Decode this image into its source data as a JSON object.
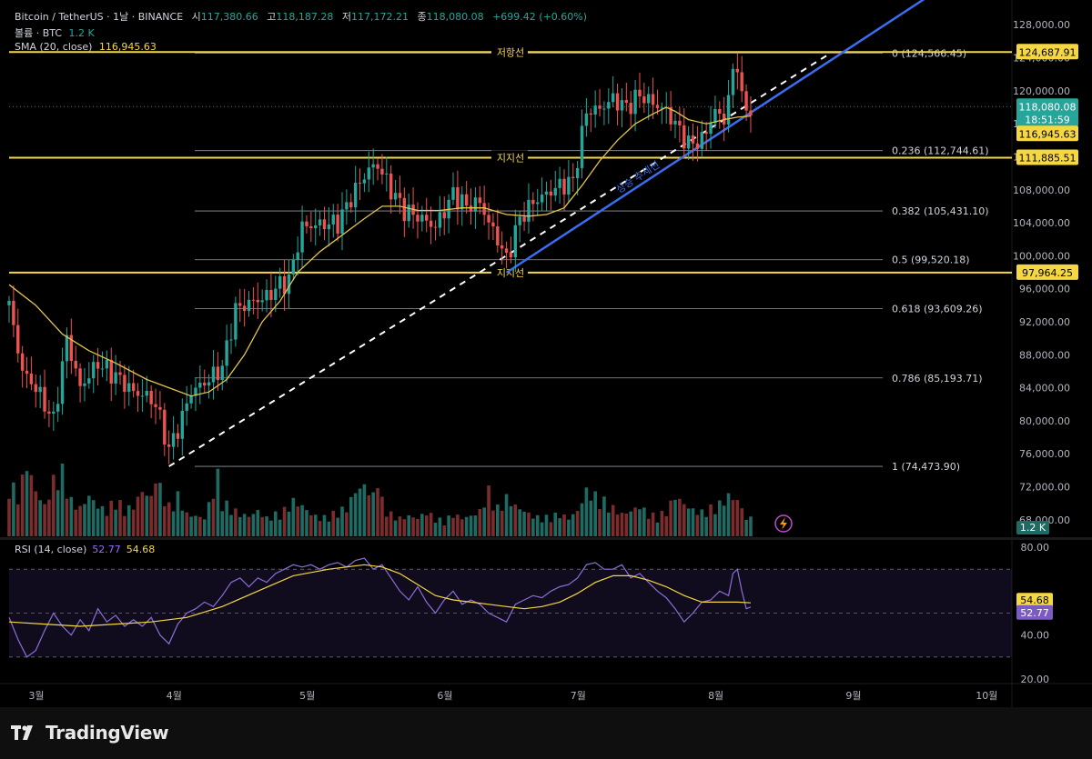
{
  "header": {
    "title": "Bitcoin / TetherUS · 1날 · BINANCE",
    "open_label": "시",
    "open": "117,380.66",
    "high_label": "고",
    "high": "118,187.28",
    "low_label": "저",
    "low": "117,172.21",
    "close_label": "종",
    "close": "118,080.08",
    "change": "+699.42 (+0.60%)",
    "volume_label": "볼륨 · BTC",
    "volume": "1.2 K",
    "sma_label": "SMA (20, close)",
    "sma": "116,945.63"
  },
  "rsi_header": {
    "label": "RSI (14, close)",
    "rsi": "52.77",
    "rsi_ma": "54.68"
  },
  "footer": {
    "brand": "TradingView"
  },
  "colors": {
    "up": "#26a69a",
    "down": "#ef5350",
    "level": "#f5d742",
    "sma": "#e3c44d",
    "trend": "#3a6df0",
    "rsi": "#8d6fd8",
    "bg": "#000000"
  },
  "chart_data": {
    "type": "candlestick",
    "y_axis": {
      "min": 66000,
      "max": 131000,
      "ticks": [
        68000,
        72000,
        76000,
        80000,
        84000,
        88000,
        92000,
        96000,
        100000,
        104000,
        108000,
        112000,
        116000,
        120000,
        124000,
        128000
      ],
      "tick_labels": [
        "68,000.00",
        "72,000.00",
        "76,000.00",
        "80,000.00",
        "84,000.00",
        "88,000.00",
        "92,000.00",
        "96,000.00",
        "100,000.00",
        "104,000.00",
        "108,000.00",
        "112,000.00",
        "116,000.00",
        "120,000.00",
        "124,000.00",
        "128,000.00"
      ]
    },
    "x_axis": {
      "months": [
        {
          "label": "3월",
          "day": 0
        },
        {
          "label": "4월",
          "day": 31
        },
        {
          "label": "5월",
          "day": 61
        },
        {
          "label": "6월",
          "day": 92
        },
        {
          "label": "7월",
          "day": 122
        },
        {
          "label": "8월",
          "day": 153
        },
        {
          "label": "9월",
          "day": 184
        },
        {
          "label": "10월",
          "day": 214
        }
      ]
    },
    "price_points": [
      [
        0,
        94000
      ],
      [
        3,
        86000
      ],
      [
        6,
        84000
      ],
      [
        10,
        80000
      ],
      [
        13,
        90000
      ],
      [
        16,
        84000
      ],
      [
        20,
        87000
      ],
      [
        25,
        85000
      ],
      [
        28,
        83500
      ],
      [
        31,
        83000
      ],
      [
        33,
        82000
      ],
      [
        36,
        76500
      ],
      [
        38,
        79000
      ],
      [
        41,
        83500
      ],
      [
        45,
        85000
      ],
      [
        48,
        86500
      ],
      [
        51,
        93500
      ],
      [
        55,
        94500
      ],
      [
        58,
        95000
      ],
      [
        61,
        96500
      ],
      [
        63,
        97000
      ],
      [
        66,
        103500
      ],
      [
        70,
        103800
      ],
      [
        74,
        104000
      ],
      [
        78,
        108000
      ],
      [
        81,
        110500
      ],
      [
        83,
        111000
      ],
      [
        86,
        108000
      ],
      [
        89,
        105500
      ],
      [
        93,
        104500
      ],
      [
        96,
        103500
      ],
      [
        100,
        107500
      ],
      [
        103,
        106000
      ],
      [
        106,
        106500
      ],
      [
        108,
        104000
      ],
      [
        110,
        102000
      ],
      [
        112,
        99500
      ],
      [
        115,
        104500
      ],
      [
        118,
        106500
      ],
      [
        121,
        107500
      ],
      [
        124,
        108500
      ],
      [
        127,
        109000
      ],
      [
        130,
        117500
      ],
      [
        133,
        117800
      ],
      [
        136,
        119000
      ],
      [
        139,
        118000
      ],
      [
        142,
        119500
      ],
      [
        145,
        118500
      ],
      [
        148,
        117500
      ],
      [
        150,
        116000
      ],
      [
        153,
        113500
      ],
      [
        156,
        114000
      ],
      [
        159,
        117500
      ],
      [
        161,
        116500
      ],
      [
        163,
        122000
      ],
      [
        164,
        123500
      ],
      [
        165,
        119000
      ],
      [
        166,
        117500
      ],
      [
        167,
        118080
      ]
    ],
    "sma_points": [
      [
        0,
        96500
      ],
      [
        6,
        94000
      ],
      [
        12,
        90500
      ],
      [
        18,
        88500
      ],
      [
        24,
        87000
      ],
      [
        31,
        85000
      ],
      [
        36,
        84000
      ],
      [
        41,
        83000
      ],
      [
        45,
        83500
      ],
      [
        49,
        85000
      ],
      [
        53,
        88000
      ],
      [
        57,
        92000
      ],
      [
        61,
        94500
      ],
      [
        65,
        98000
      ],
      [
        70,
        100500
      ],
      [
        75,
        102500
      ],
      [
        80,
        104500
      ],
      [
        84,
        106000
      ],
      [
        88,
        106000
      ],
      [
        92,
        105500
      ],
      [
        97,
        105500
      ],
      [
        102,
        105800
      ],
      [
        107,
        105800
      ],
      [
        112,
        105000
      ],
      [
        117,
        104800
      ],
      [
        121,
        105000
      ],
      [
        125,
        105800
      ],
      [
        129,
        108500
      ],
      [
        133,
        111500
      ],
      [
        137,
        114000
      ],
      [
        141,
        116000
      ],
      [
        145,
        117200
      ],
      [
        148,
        118000
      ],
      [
        150,
        117500
      ],
      [
        153,
        116500
      ],
      [
        157,
        116000
      ],
      [
        161,
        116500
      ],
      [
        164,
        116800
      ],
      [
        167,
        116945
      ]
    ],
    "volume_points": [
      [
        0,
        55
      ],
      [
        2,
        40
      ],
      [
        4,
        72
      ],
      [
        6,
        45
      ],
      [
        8,
        30
      ],
      [
        10,
        55
      ],
      [
        12,
        68
      ],
      [
        14,
        35
      ],
      [
        16,
        28
      ],
      [
        18,
        40
      ],
      [
        20,
        30
      ],
      [
        22,
        25
      ],
      [
        24,
        38
      ],
      [
        26,
        26
      ],
      [
        28,
        30
      ],
      [
        30,
        45
      ],
      [
        32,
        38
      ],
      [
        33,
        60
      ],
      [
        34,
        48
      ],
      [
        36,
        30
      ],
      [
        38,
        40
      ],
      [
        40,
        22
      ],
      [
        42,
        20
      ],
      [
        44,
        18
      ],
      [
        46,
        45
      ],
      [
        47,
        60
      ],
      [
        48,
        35
      ],
      [
        50,
        28
      ],
      [
        52,
        22
      ],
      [
        54,
        20
      ],
      [
        56,
        25
      ],
      [
        58,
        18
      ],
      [
        60,
        22
      ],
      [
        62,
        26
      ],
      [
        64,
        35
      ],
      [
        66,
        30
      ],
      [
        68,
        22
      ],
      [
        70,
        18
      ],
      [
        72,
        20
      ],
      [
        74,
        25
      ],
      [
        76,
        28
      ],
      [
        78,
        45
      ],
      [
        80,
        50
      ],
      [
        82,
        40
      ],
      [
        83,
        60
      ],
      [
        84,
        35
      ],
      [
        86,
        22
      ],
      [
        88,
        18
      ],
      [
        90,
        20
      ],
      [
        92,
        18
      ],
      [
        94,
        24
      ],
      [
        96,
        18
      ],
      [
        98,
        15
      ],
      [
        100,
        22
      ],
      [
        102,
        18
      ],
      [
        104,
        20
      ],
      [
        106,
        25
      ],
      [
        108,
        45
      ],
      [
        110,
        28
      ],
      [
        112,
        38
      ],
      [
        114,
        30
      ],
      [
        116,
        25
      ],
      [
        118,
        20
      ],
      [
        120,
        18
      ],
      [
        122,
        20
      ],
      [
        124,
        22
      ],
      [
        126,
        18
      ],
      [
        128,
        25
      ],
      [
        130,
        45
      ],
      [
        132,
        40
      ],
      [
        134,
        35
      ],
      [
        136,
        28
      ],
      [
        138,
        22
      ],
      [
        140,
        25
      ],
      [
        142,
        30
      ],
      [
        144,
        22
      ],
      [
        146,
        20
      ],
      [
        148,
        25
      ],
      [
        150,
        40
      ],
      [
        152,
        32
      ],
      [
        154,
        26
      ],
      [
        156,
        24
      ],
      [
        158,
        28
      ],
      [
        160,
        32
      ],
      [
        162,
        40
      ],
      [
        164,
        36
      ],
      [
        166,
        18
      ]
    ],
    "horizontal_levels": [
      {
        "value": 124687.91,
        "label": "저항선",
        "tag": "124,687.91"
      },
      {
        "value": 111885.51,
        "label": "지지선",
        "tag": "111,885.51"
      },
      {
        "value": 97964.25,
        "label": "지지선",
        "tag": "97,964.25"
      }
    ],
    "fib_levels": [
      {
        "ratio": "0",
        "value": 124566.45,
        "text": "0 (124,566.45)"
      },
      {
        "ratio": "0.236",
        "value": 112744.61,
        "text": "0.236 (112,744.61)"
      },
      {
        "ratio": "0.382",
        "value": 105431.1,
        "text": "0.382 (105,431.10)"
      },
      {
        "ratio": "0.5",
        "value": 99520.18,
        "text": "0.5 (99,520.18)"
      },
      {
        "ratio": "0.618",
        "value": 93609.26,
        "text": "0.618 (93,609.26)"
      },
      {
        "ratio": "0.786",
        "value": 85193.71,
        "text": "0.786 (85,193.71)"
      },
      {
        "ratio": "1",
        "value": 74473.9,
        "text": "1 (74,473.90)"
      }
    ],
    "trend_line": {
      "label": "상승 추세선",
      "from": [
        112,
        97964
      ],
      "to": [
        210,
        132500
      ]
    },
    "fib_diagonal": {
      "from": [
        36,
        74474
      ],
      "to": [
        185,
        124566
      ]
    },
    "price_tags": [
      {
        "value": 118080.08,
        "text": "118,080.08",
        "sub": "18:51:59",
        "color": "#26a69a"
      },
      {
        "value": 116945.63,
        "text": "116,945.63",
        "color": "#f5d742"
      }
    ],
    "volume_tag": "1.2 K",
    "rsi": {
      "ymin": 20,
      "ymax": 80,
      "tick_labels": [
        "80.00",
        "40.00",
        "20.00"
      ],
      "ticks": [
        80,
        40,
        20
      ],
      "band_upper": 70,
      "band_mid": 50,
      "band_lower": 30,
      "rsi_points": [
        [
          0,
          48
        ],
        [
          2,
          38
        ],
        [
          4,
          30
        ],
        [
          6,
          33
        ],
        [
          8,
          42
        ],
        [
          10,
          50
        ],
        [
          12,
          44
        ],
        [
          14,
          40
        ],
        [
          16,
          47
        ],
        [
          18,
          42
        ],
        [
          20,
          52
        ],
        [
          22,
          46
        ],
        [
          24,
          49
        ],
        [
          26,
          44
        ],
        [
          28,
          47
        ],
        [
          30,
          44
        ],
        [
          32,
          48
        ],
        [
          34,
          40
        ],
        [
          36,
          36
        ],
        [
          38,
          45
        ],
        [
          40,
          50
        ],
        [
          42,
          52
        ],
        [
          44,
          55
        ],
        [
          46,
          53
        ],
        [
          48,
          58
        ],
        [
          50,
          64
        ],
        [
          52,
          66
        ],
        [
          54,
          62
        ],
        [
          56,
          66
        ],
        [
          58,
          64
        ],
        [
          60,
          68
        ],
        [
          62,
          70
        ],
        [
          64,
          72
        ],
        [
          66,
          71
        ],
        [
          68,
          72
        ],
        [
          70,
          70
        ],
        [
          72,
          72
        ],
        [
          74,
          73
        ],
        [
          76,
          71
        ],
        [
          78,
          74
        ],
        [
          80,
          75
        ],
        [
          82,
          70
        ],
        [
          84,
          72
        ],
        [
          86,
          66
        ],
        [
          88,
          60
        ],
        [
          90,
          56
        ],
        [
          92,
          62
        ],
        [
          94,
          55
        ],
        [
          96,
          50
        ],
        [
          98,
          56
        ],
        [
          100,
          60
        ],
        [
          102,
          54
        ],
        [
          104,
          56
        ],
        [
          106,
          54
        ],
        [
          108,
          50
        ],
        [
          110,
          48
        ],
        [
          112,
          46
        ],
        [
          114,
          54
        ],
        [
          116,
          56
        ],
        [
          118,
          58
        ],
        [
          120,
          57
        ],
        [
          122,
          60
        ],
        [
          124,
          62
        ],
        [
          126,
          63
        ],
        [
          128,
          66
        ],
        [
          130,
          72
        ],
        [
          132,
          73
        ],
        [
          134,
          70
        ],
        [
          136,
          70
        ],
        [
          138,
          72
        ],
        [
          140,
          66
        ],
        [
          142,
          68
        ],
        [
          144,
          64
        ],
        [
          146,
          60
        ],
        [
          148,
          57
        ],
        [
          150,
          52
        ],
        [
          152,
          46
        ],
        [
          154,
          50
        ],
        [
          156,
          55
        ],
        [
          158,
          56
        ],
        [
          160,
          60
        ],
        [
          162,
          58
        ],
        [
          163,
          68
        ],
        [
          164,
          70
        ],
        [
          165,
          60
        ],
        [
          166,
          52
        ],
        [
          167,
          52.77
        ]
      ],
      "ma_points": [
        [
          0,
          46
        ],
        [
          8,
          45
        ],
        [
          16,
          44
        ],
        [
          24,
          45
        ],
        [
          32,
          46
        ],
        [
          40,
          48
        ],
        [
          48,
          53
        ],
        [
          56,
          60
        ],
        [
          64,
          67
        ],
        [
          72,
          70
        ],
        [
          80,
          72
        ],
        [
          84,
          71
        ],
        [
          88,
          68
        ],
        [
          92,
          63
        ],
        [
          96,
          58
        ],
        [
          100,
          56
        ],
        [
          104,
          55
        ],
        [
          108,
          54
        ],
        [
          112,
          53
        ],
        [
          116,
          52
        ],
        [
          120,
          53
        ],
        [
          124,
          55
        ],
        [
          128,
          59
        ],
        [
          132,
          64
        ],
        [
          136,
          67
        ],
        [
          140,
          67
        ],
        [
          144,
          65
        ],
        [
          148,
          62
        ],
        [
          152,
          58
        ],
        [
          156,
          55
        ],
        [
          160,
          55
        ],
        [
          164,
          55
        ],
        [
          167,
          54.68
        ]
      ],
      "tags": [
        {
          "value": 54.68,
          "text": "54.68",
          "color": "#f5d742"
        },
        {
          "value": 52.77,
          "text": "52.77",
          "color": "#7c5cc4"
        }
      ]
    }
  }
}
